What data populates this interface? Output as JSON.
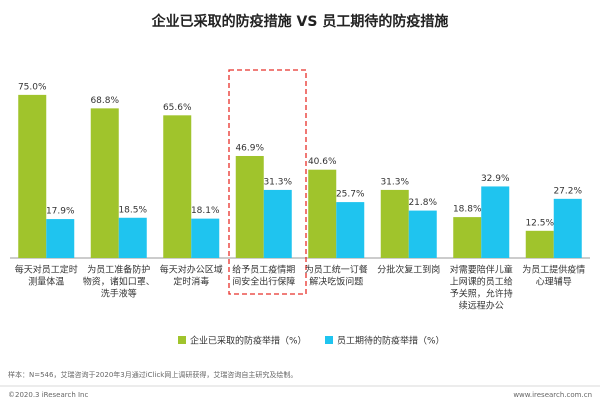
{
  "chart_data": {
    "type": "bar",
    "title": "企业已采取的防疫措施 VS 员工期待的防疫措施",
    "categories": [
      [
        "每天对员工定时",
        "测量体温"
      ],
      [
        "为员工准备防护",
        "物资，诸如口罩、",
        "洗手液等"
      ],
      [
        "每天对办公区域",
        "定时消毒"
      ],
      [
        "给予员工疫情期",
        "间安全出行保障"
      ],
      [
        "为员工统一订餐",
        "解决吃饭问题"
      ],
      [
        "分批次复工到岗"
      ],
      [
        "对需要陪伴儿童",
        "上网课的员工给",
        "予关照，允许持",
        "续远程办公"
      ],
      [
        "为员工提供疫情",
        "心理辅导"
      ]
    ],
    "series": [
      {
        "name": "企业已采取的防疫举措（%）",
        "color": "#a0c42c",
        "values": [
          75.0,
          68.8,
          65.6,
          46.9,
          40.6,
          31.3,
          18.8,
          12.5
        ],
        "value_labels": [
          "75.0%",
          "68.8%",
          "65.6%",
          "46.9%",
          "40.6%",
          "31.3%",
          "18.8%",
          "12.5%"
        ]
      },
      {
        "name": "员工期待的防疫举措（%）",
        "color": "#1fc4ef",
        "values": [
          17.9,
          18.5,
          18.1,
          31.3,
          25.7,
          21.8,
          32.9,
          27.2
        ],
        "value_labels": [
          "17.9%",
          "18.5%",
          "18.1%",
          "31.3%",
          "25.7%",
          "21.8%",
          "32.9%",
          "27.2%"
        ]
      }
    ],
    "ylim": [
      0,
      80
    ],
    "note": "样本：N=546，艾瑞咨询于2020年3月通过iClick网上调研获得，艾瑞咨询自主研究及绘制。",
    "footer_left": "©2020.3 iResearch Inc",
    "footer_right": "www.iresearch.com.cn"
  }
}
